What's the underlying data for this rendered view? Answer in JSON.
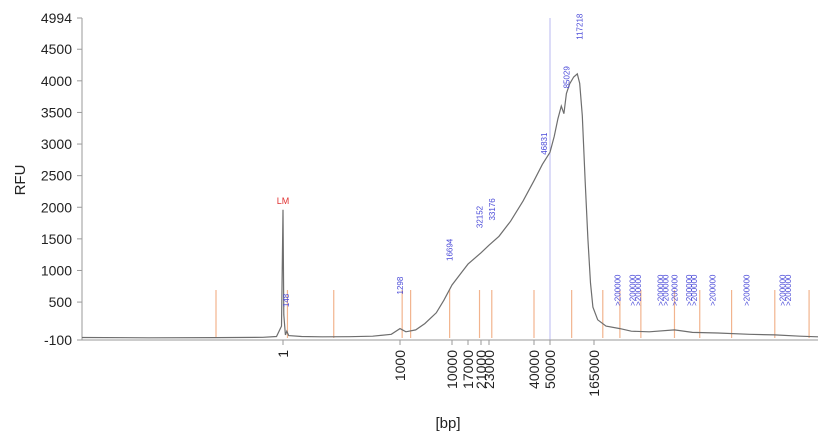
{
  "chart_data": {
    "type": "line",
    "xlabel": "[bp]",
    "ylabel": "RFU",
    "ylim": [
      -100,
      4994
    ],
    "yticks": [
      -100,
      500,
      1000,
      1500,
      2000,
      2500,
      3000,
      3500,
      4000,
      4500,
      4994
    ],
    "xticks": [
      "1",
      "1000",
      "10000",
      "17000",
      "21000",
      "23000",
      "40000",
      "50000",
      "165000"
    ],
    "grid": false,
    "line_color": "#6e6e6e",
    "marker_color": "#f2b48e",
    "ruler_color": "#b8b8f0",
    "lm_marker": {
      "label": "LM",
      "bp": 1,
      "rfu": 1960,
      "color": "#e03030"
    },
    "peak_labels": [
      {
        "text": "148",
        "bp": 1.2,
        "rfu": 420
      },
      {
        "text": "1298",
        "bp": 1000,
        "rfu": 620
      },
      {
        "text": "16694",
        "bp": 9000,
        "rfu": 1150
      },
      {
        "text": "32152",
        "bp": 20500,
        "rfu": 1670
      },
      {
        "text": "33176",
        "bp": 23800,
        "rfu": 1790
      },
      {
        "text": "46831",
        "bp": 46000,
        "rfu": 2830
      },
      {
        "text": "85029",
        "bp": 78000,
        "rfu": 3880
      },
      {
        "text": "117218",
        "bp": 112000,
        "rfu": 4650
      },
      {
        "text": ">200000",
        "bp": 240000,
        "rfu": 440
      },
      {
        "text": ">200000",
        "bp": 305000,
        "rfu": 440
      },
      {
        "text": ">200000",
        "bp": 335000,
        "rfu": 440
      },
      {
        "text": ">200000",
        "bp": 480000,
        "rfu": 440
      },
      {
        "text": ">200000",
        "bp": 520000,
        "rfu": 440
      },
      {
        "text": ">200000",
        "bp": 600000,
        "rfu": 440
      },
      {
        "text": ">200000",
        "bp": 760000,
        "rfu": 440
      },
      {
        "text": ">200000",
        "bp": 820000,
        "rfu": 440
      },
      {
        "text": ">200000",
        "bp": 1100000,
        "rfu": 440
      },
      {
        "text": ">200000",
        "bp": 1900000,
        "rfu": 440
      },
      {
        "text": ">200000",
        "bp": 3400000,
        "rfu": 440
      },
      {
        "text": ">200000",
        "bp": 3700000,
        "rfu": 440
      }
    ],
    "trace": [
      [
        0.001,
        -60
      ],
      [
        0.01,
        -65
      ],
      [
        0.1,
        -62
      ],
      [
        0.5,
        -58
      ],
      [
        0.8,
        -45
      ],
      [
        0.95,
        120
      ],
      [
        1,
        1960
      ],
      [
        1.05,
        300
      ],
      [
        1.15,
        -20
      ],
      [
        1.25,
        40
      ],
      [
        1.4,
        -30
      ],
      [
        3,
        -45
      ],
      [
        10,
        -50
      ],
      [
        50,
        -48
      ],
      [
        200,
        -40
      ],
      [
        600,
        -10
      ],
      [
        1000,
        80
      ],
      [
        1300,
        30
      ],
      [
        2000,
        60
      ],
      [
        3000,
        160
      ],
      [
        5000,
        330
      ],
      [
        7000,
        530
      ],
      [
        10000,
        770
      ],
      [
        14000,
        980
      ],
      [
        17000,
        1100
      ],
      [
        21000,
        1280
      ],
      [
        23000,
        1400
      ],
      [
        26000,
        1540
      ],
      [
        30000,
        1780
      ],
      [
        35000,
        2100
      ],
      [
        40000,
        2420
      ],
      [
        45000,
        2680
      ],
      [
        50000,
        2870
      ],
      [
        56000,
        3120
      ],
      [
        62000,
        3400
      ],
      [
        68000,
        3600
      ],
      [
        73000,
        3480
      ],
      [
        78000,
        3800
      ],
      [
        85000,
        3950
      ],
      [
        95000,
        4060
      ],
      [
        105000,
        4110
      ],
      [
        112000,
        3960
      ],
      [
        120000,
        3450
      ],
      [
        130000,
        2400
      ],
      [
        140000,
        1500
      ],
      [
        150000,
        800
      ],
      [
        160000,
        420
      ],
      [
        175000,
        220
      ],
      [
        200000,
        120
      ],
      [
        250000,
        80
      ],
      [
        300000,
        40
      ],
      [
        400000,
        30
      ],
      [
        600000,
        60
      ],
      [
        800000,
        20
      ],
      [
        1200000,
        10
      ],
      [
        2000000,
        -10
      ],
      [
        3000000,
        -20
      ],
      [
        4500000,
        -40
      ],
      [
        6000000,
        -50
      ]
    ],
    "vertical_markers_bp": [
      0.1,
      1.3,
      20,
      1100,
      1600,
      9000,
      20500,
      23800,
      40000,
      90000,
      190000,
      250000,
      350000,
      600000,
      900000,
      1500000,
      3000000,
      5200000
    ],
    "ruler_bp": 50000
  }
}
